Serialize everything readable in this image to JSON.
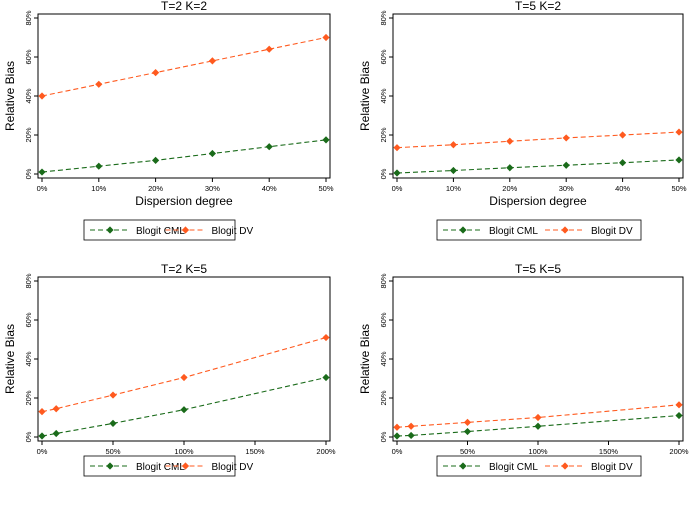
{
  "colors": {
    "cml": "#1a6b1a",
    "dv": "#ff5a1f",
    "frame": "#000000",
    "background": "#ffffff"
  },
  "chart_data": [
    {
      "type": "line",
      "title": "T=2 K=2",
      "xlabel": "Dispersion degree",
      "ylabel": "Relative Bias",
      "x": [
        0,
        10,
        20,
        30,
        40,
        50
      ],
      "xlim": [
        0,
        50
      ],
      "xticks": [
        "0%",
        "10%",
        "20%",
        "30%",
        "40%",
        "50%"
      ],
      "ylim": [
        0,
        80
      ],
      "yticks": [
        "0%",
        "20%",
        "40%",
        "60%",
        "80%"
      ],
      "series": [
        {
          "name": "Blogit CML",
          "color": "#1a6b1a",
          "values": [
            1,
            4,
            7,
            10.5,
            14,
            17.5
          ]
        },
        {
          "name": "Blogit DV",
          "color": "#ff5a1f",
          "values": [
            40,
            46,
            52,
            58,
            64,
            70
          ]
        }
      ],
      "legend": [
        "Blogit CML",
        "Blogit DV"
      ]
    },
    {
      "type": "line",
      "title": "T=5 K=2",
      "xlabel": "Dispersion degree",
      "ylabel": "Relative Bias",
      "x": [
        0,
        10,
        20,
        30,
        40,
        50
      ],
      "xlim": [
        0,
        50
      ],
      "xticks": [
        "0%",
        "10%",
        "20%",
        "30%",
        "40%",
        "50%"
      ],
      "ylim": [
        0,
        80
      ],
      "yticks": [
        "0%",
        "20%",
        "40%",
        "60%",
        "80%"
      ],
      "series": [
        {
          "name": "Blogit CML",
          "color": "#1a6b1a",
          "values": [
            0.5,
            1.8,
            3.2,
            4.5,
            5.8,
            7.2
          ]
        },
        {
          "name": "Blogit DV",
          "color": "#ff5a1f",
          "values": [
            13.5,
            15,
            16.8,
            18.5,
            20,
            21.5
          ]
        }
      ],
      "legend": [
        "Blogit CML",
        "Blogit DV"
      ]
    },
    {
      "type": "line",
      "title": "T=2 K=5",
      "xlabel": "Dispersion degree",
      "ylabel": "Relative Bias",
      "x": [
        0,
        10,
        50,
        100,
        200
      ],
      "xlim": [
        0,
        200
      ],
      "xticks": [
        "0%",
        "50%",
        "100%",
        "150%",
        "200%"
      ],
      "ylim": [
        0,
        80
      ],
      "yticks": [
        "0%",
        "20%",
        "40%",
        "60%",
        "80%"
      ],
      "series": [
        {
          "name": "Blogit CML",
          "color": "#1a6b1a",
          "values": [
            0.5,
            1.8,
            7,
            14,
            30.5
          ]
        },
        {
          "name": "Blogit DV",
          "color": "#ff5a1f",
          "values": [
            13,
            14.5,
            21.5,
            30.5,
            51
          ]
        }
      ],
      "legend": [
        "Blogit CML",
        "Blogit DV"
      ]
    },
    {
      "type": "line",
      "title": "T=5 K=5",
      "xlabel": "Dispersion degree",
      "ylabel": "Relative Bias",
      "x": [
        0,
        10,
        50,
        100,
        200
      ],
      "xlim": [
        0,
        200
      ],
      "xticks": [
        "0%",
        "50%",
        "100%",
        "150%",
        "200%"
      ],
      "ylim": [
        0,
        80
      ],
      "yticks": [
        "0%",
        "20%",
        "40%",
        "60%",
        "80%"
      ],
      "series": [
        {
          "name": "Blogit CML",
          "color": "#1a6b1a",
          "values": [
            0.5,
            0.8,
            2.8,
            5.5,
            11
          ]
        },
        {
          "name": "Blogit DV",
          "color": "#ff5a1f",
          "values": [
            5,
            5.5,
            7.5,
            10,
            16.5
          ]
        }
      ],
      "legend": [
        "Blogit CML",
        "Blogit DV"
      ]
    }
  ]
}
